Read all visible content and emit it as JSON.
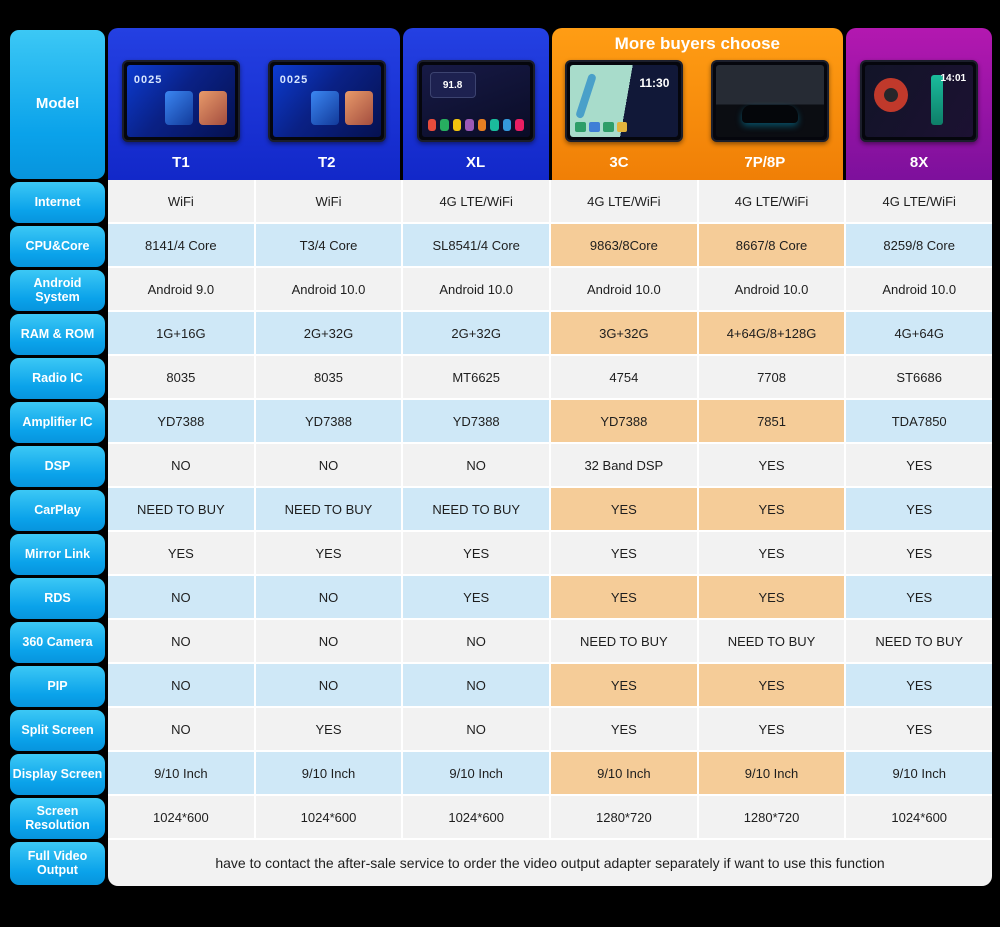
{
  "model_label": "Model",
  "banner": "More buyers choose",
  "models": [
    {
      "name": "T1",
      "group": "blue",
      "screen_text": "0025"
    },
    {
      "name": "T2",
      "group": "blue",
      "screen_text": "0025"
    },
    {
      "name": "XL",
      "group": "blue",
      "screen_text": "91.8"
    },
    {
      "name": "3C",
      "group": "orange",
      "screen_text": "11:30"
    },
    {
      "name": "7P/8P",
      "group": "orange"
    },
    {
      "name": "8X",
      "group": "purple",
      "screen_text": "14:01"
    }
  ],
  "rows": [
    {
      "label": "Internet",
      "values": [
        "WiFi",
        "WiFi",
        "4G LTE/WiFi",
        "4G LTE/WiFi",
        "4G LTE/WiFi",
        "4G LTE/WiFi"
      ]
    },
    {
      "label": "CPU&Core",
      "values": [
        "8141/4 Core",
        "T3/4 Core",
        "SL8541/4 Core",
        "9863/8Core",
        "8667/8 Core",
        "8259/8 Core"
      ]
    },
    {
      "label": "Android System",
      "values": [
        "Android 9.0",
        "Android 10.0",
        "Android 10.0",
        "Android 10.0",
        "Android 10.0",
        "Android 10.0"
      ]
    },
    {
      "label": "RAM & ROM",
      "values": [
        "1G+16G",
        "2G+32G",
        "2G+32G",
        "3G+32G",
        "4+64G/8+128G",
        "4G+64G"
      ]
    },
    {
      "label": "Radio IC",
      "values": [
        "8035",
        "8035",
        "MT6625",
        "4754",
        "7708",
        "ST6686"
      ]
    },
    {
      "label": "Amplifier IC",
      "values": [
        "YD7388",
        "YD7388",
        "YD7388",
        "YD7388",
        "7851",
        "TDA7850"
      ]
    },
    {
      "label": "DSP",
      "values": [
        "NO",
        "NO",
        "NO",
        "32 Band DSP",
        "YES",
        "YES"
      ]
    },
    {
      "label": "CarPlay",
      "values": [
        "NEED TO BUY",
        "NEED TO BUY",
        "NEED TO BUY",
        "YES",
        "YES",
        "YES"
      ]
    },
    {
      "label": "Mirror Link",
      "values": [
        "YES",
        "YES",
        "YES",
        "YES",
        "YES",
        "YES"
      ]
    },
    {
      "label": "RDS",
      "values": [
        "NO",
        "NO",
        "YES",
        "YES",
        "YES",
        "YES"
      ]
    },
    {
      "label": "360 Camera",
      "values": [
        "NO",
        "NO",
        "NO",
        "NEED TO BUY",
        "NEED TO BUY",
        "NEED TO BUY"
      ]
    },
    {
      "label": "PIP",
      "values": [
        "NO",
        "NO",
        "NO",
        "YES",
        "YES",
        "YES"
      ]
    },
    {
      "label": "Split Screen",
      "values": [
        "NO",
        "YES",
        "NO",
        "YES",
        "YES",
        "YES"
      ]
    },
    {
      "label": "Display Screen",
      "values": [
        "9/10 Inch",
        "9/10 Inch",
        "9/10 Inch",
        "9/10 Inch",
        "9/10 Inch",
        "9/10 Inch"
      ]
    },
    {
      "label": "Screen Resolution",
      "values": [
        "1024*600",
        "1024*600",
        "1024*600",
        "1280*720",
        "1280*720",
        "1024*600"
      ]
    }
  ],
  "footer": {
    "label": "Full Video Output",
    "note": "have to contact the after-sale service to order the video output adapter separately if want to use this function"
  },
  "palette": {
    "label_cyan": "#12b3ef",
    "header_blue": "#1c33d9",
    "header_orange": "#f78d11",
    "header_purple": "#9c16a4",
    "row_white": "#f2f2f2",
    "row_blue": "#cfe8f7",
    "highlight_peach": "#f5cc98",
    "background": "#000000"
  }
}
